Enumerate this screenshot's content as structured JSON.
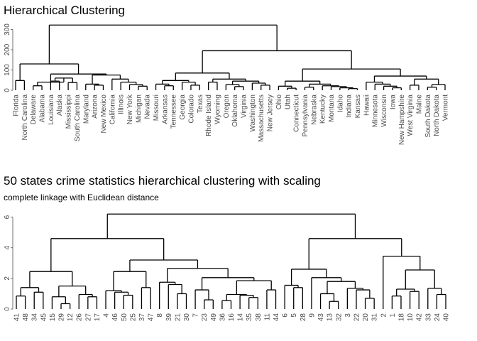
{
  "chart_data": [
    {
      "type": "dendrogram",
      "title": "Hierarchical Clustering",
      "subtitle": "",
      "xlabel": "",
      "ylabel": "",
      "ylim": [
        0,
        330
      ],
      "yticks": [
        "0",
        "100",
        "200",
        "300"
      ],
      "tree": {
        "h": 322,
        "c": [
          {
            "h": 130,
            "c": [
              {
                "h": 48,
                "c": [
                  "Florida",
                  "North Carolina"
                ]
              },
              {
                "h": 80,
                "c": [
                  {
                    "h": 40,
                    "c": [
                      {
                        "h": 22,
                        "c": [
                          "Delaware",
                          "Alabama"
                        ]
                      },
                      {
                        "h": 60,
                        "c": [
                          {
                            "h": 45,
                            "c": [
                              "Louisiana",
                              "Alaska"
                            ]
                          },
                          {
                            "h": 38,
                            "c": [
                              "Mississippi",
                              "South Carolina"
                            ]
                          }
                        ]
                      }
                    ]
                  },
                  {
                    "h": 75,
                    "c": [
                      {
                        "h": 30,
                        "c": [
                          "Maryland",
                          {
                            "h": 25,
                            "c": [
                              "Arizona",
                              "New Mexico"
                            ]
                          }
                        ]
                      },
                      {
                        "h": 55,
                        "c": [
                          "California",
                          {
                            "h": 40,
                            "c": [
                              "Illinois",
                              {
                                "h": 28,
                                "c": [
                                  "New York",
                                  {
                                    "h": 20,
                                    "c": [
                                      "Michigan",
                                      "Nevada"
                                    ]
                                  }
                                ]
                              }
                            ]
                          }
                        ]
                      }
                    ]
                  }
                ]
              }
            ]
          },
          {
            "h": 195,
            "c": [
              {
                "h": 85,
                "c": [
                  {
                    "h": 48,
                    "c": [
                      {
                        "h": 30,
                        "c": [
                          "Missouri",
                          {
                            "h": 22,
                            "c": [
                              "Arkansas",
                              "Tennessee"
                            ]
                          }
                        ]
                      },
                      {
                        "h": 40,
                        "c": [
                          "Georgia",
                          {
                            "h": 25,
                            "c": [
                              "Colorado",
                              "Texas"
                            ]
                          }
                        ]
                      }
                    ]
                  },
                  {
                    "h": 55,
                    "c": [
                      {
                        "h": 40,
                        "c": [
                          "Rhode Island",
                          "Wyoming"
                        ]
                      },
                      {
                        "h": 45,
                        "c": [
                          {
                            "h": 28,
                            "c": [
                              "Oregon",
                              {
                                "h": 18,
                                "c": [
                                  "Oklahoma",
                                  "Virginia"
                                ]
                              }
                            ]
                          },
                          {
                            "h": 35,
                            "c": [
                              "Washington",
                              {
                                "h": 25,
                                "c": [
                                  "Massachusetts",
                                  "New Jersey"
                                ]
                              }
                            ]
                          }
                        ]
                      }
                    ]
                  }
                ]
              },
              {
                "h": 105,
                "c": [
                  {
                    "h": 45,
                    "c": [
                      {
                        "h": 20,
                        "c": [
                          "Ohio",
                          {
                            "h": 10,
                            "c": [
                              "Utah",
                              "Connecticut"
                            ]
                          }
                        ]
                      },
                      {
                        "h": 30,
                        "c": [
                          {
                            "h": 15,
                            "c": [
                              "Pennsylvania",
                              "Nebraska"
                            ]
                          },
                          {
                            "h": 22,
                            "c": [
                              "Kentucky",
                              {
                                "h": 18,
                                "c": [
                                  "Montana",
                                  {
                                    "h": 12,
                                    "c": [
                                      "Idaho",
                                      {
                                        "h": 8,
                                        "c": [
                                          "Indiana",
                                          "Kansas"
                                        ]
                                      }
                                    ]
                                  }
                                ]
                              }
                            ]
                          }
                        ]
                      }
                    ]
                  },
                  {
                    "h": 70,
                    "c": [
                      {
                        "h": 40,
                        "c": [
                          "Hawaii",
                          {
                            "h": 30,
                            "c": [
                              "Minnesota",
                              {
                                "h": 20,
                                "c": [
                                  "Wisconsin",
                                  {
                                    "h": 12,
                                    "c": [
                                      "Iowa",
                                      "New Hampshire"
                                    ]
                                  }
                                ]
                              }
                            ]
                          }
                        ]
                      },
                      {
                        "h": 55,
                        "c": [
                          {
                            "h": 25,
                            "c": [
                              "West Virginia",
                              "Maine"
                            ]
                          },
                          {
                            "h": 28,
                            "c": [
                              {
                                "h": 15,
                                "c": [
                                  "South Dakota",
                                  "North Dakota"
                                ]
                              },
                              "Vermont"
                            ]
                          }
                        ]
                      }
                    ]
                  }
                ]
              }
            ]
          }
        ]
      }
    },
    {
      "type": "dendrogram",
      "title": "50 states crime statistics hierarchical clustering with scaling",
      "subtitle": "complete linkage with Euclidean distance",
      "xlabel": "",
      "ylabel": "",
      "ylim": [
        0,
        6.4
      ],
      "yticks": [
        "0",
        "2",
        "4",
        "6"
      ],
      "tree": {
        "h": 6.2,
        "c": [
          {
            "h": 4.6,
            "c": [
              {
                "h": 2.45,
                "c": [
                  {
                    "h": 1.4,
                    "c": [
                      {
                        "h": 0.85,
                        "c": [
                          "41",
                          "48"
                        ]
                      },
                      {
                        "h": 1.1,
                        "c": [
                          "34",
                          "45"
                        ]
                      }
                    ]
                  },
                  {
                    "h": 1.5,
                    "c": [
                      {
                        "h": 0.8,
                        "c": [
                          "15",
                          {
                            "h": 0.35,
                            "c": [
                              "29",
                              "12"
                            ]
                          }
                        ]
                      },
                      {
                        "h": 0.95,
                        "c": [
                          "26",
                          {
                            "h": 0.8,
                            "c": [
                              "27",
                              "17"
                            ]
                          }
                        ]
                      }
                    ]
                  }
                ]
              },
              {
                "h": 3.2,
                "c": [
                  {
                    "h": 2.45,
                    "c": [
                      {
                        "h": 1.2,
                        "c": [
                          "4",
                          {
                            "h": 1.1,
                            "c": [
                              "46",
                              {
                                "h": 0.9,
                                "c": [
                                  "50",
                                  "25"
                                ]
                              }
                            ]
                          }
                        ]
                      },
                      {
                        "h": 1.4,
                        "c": [
                          "37",
                          "47"
                        ]
                      }
                    ]
                  },
                  {
                    "h": 2.65,
                    "c": [
                      {
                        "h": 1.75,
                        "c": [
                          "8",
                          {
                            "h": 1.6,
                            "c": [
                              "39",
                              {
                                "h": 1.0,
                                "c": [
                                  "21",
                                  "30"
                                ]
                              }
                            ]
                          }
                        ]
                      },
                      {
                        "h": 2.05,
                        "c": [
                          {
                            "h": 1.25,
                            "c": [
                              "7",
                              {
                                "h": 0.6,
                                "c": [
                                  "23",
                                  "49"
                                ]
                              }
                            ]
                          },
                          {
                            "h": 1.85,
                            "c": [
                              {
                                "h": 0.95,
                                "c": [
                                  {
                                    "h": 0.55,
                                    "c": [
                                      "36",
                                      "16"
                                    ]
                                  },
                                  {
                                    "h": 0.9,
                                    "c": [
                                      "14",
                                      {
                                        "h": 0.75,
                                        "c": [
                                          "35",
                                          "38"
                                        ]
                                      }
                                    ]
                                  }
                                ]
                              },
                              {
                                "h": 1.25,
                                "c": [
                                  "11",
                                  "44"
                                ]
                              }
                            ]
                          }
                        ]
                      }
                    ]
                  }
                ]
              }
            ]
          },
          {
            "h": 4.6,
            "c": [
              {
                "h": 2.6,
                "c": [
                  {
                    "h": 1.55,
                    "c": [
                      "6",
                      {
                        "h": 1.4,
                        "c": [
                          "5",
                          "28"
                        ]
                      }
                    ]
                  },
                  {
                    "h": 2.05,
                    "c": [
                      "9",
                      {
                        "h": 1.8,
                        "c": [
                          {
                            "h": 1.0,
                            "c": [
                              "43",
                              {
                                "h": 0.5,
                                "c": [
                                  "13",
                                  "32"
                                ]
                              }
                            ]
                          },
                          {
                            "h": 1.35,
                            "c": [
                              "3",
                              {
                                "h": 1.25,
                                "c": [
                                  "22",
                                  {
                                    "h": 0.7,
                                    "c": [
                                      "20",
                                      "31"
                                    ]
                                  }
                                ]
                              }
                            ]
                          }
                        ]
                      }
                    ]
                  }
                ]
              },
              {
                "h": 3.45,
                "c": [
                  "2",
                  {
                    "h": 2.55,
                    "c": [
                      {
                        "h": 1.3,
                        "c": [
                          {
                            "h": 0.85,
                            "c": [
                              "1",
                              "18"
                            ]
                          },
                          {
                            "h": 1.15,
                            "c": [
                              "10",
                              "42"
                            ]
                          }
                        ]
                      },
                      {
                        "h": 1.35,
                        "c": [
                          "33",
                          {
                            "h": 0.95,
                            "c": [
                              "24",
                              "40"
                            ]
                          }
                        ]
                      }
                    ]
                  }
                ]
              }
            ]
          }
        ]
      }
    }
  ]
}
